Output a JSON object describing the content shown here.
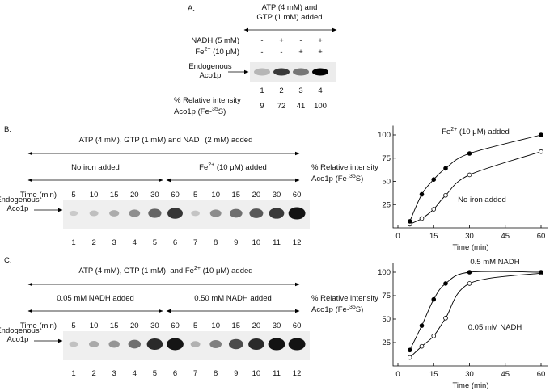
{
  "panels": {
    "a": {
      "label": "A.",
      "treatment": [
        "ATP (4 mM) and",
        "GTP (1 mM) added"
      ],
      "conditions": [
        {
          "name": [
            "NADH (5 mM)"
          ],
          "signs": [
            "-",
            "+",
            "-",
            "+"
          ]
        },
        {
          "name": [
            "Fe",
            "2+",
            " (10 μM)"
          ],
          "signs": [
            "-",
            "-",
            "+",
            "+"
          ]
        }
      ],
      "band_label": [
        "Endogenous",
        "Aco1p"
      ],
      "lanes": [
        1,
        2,
        3,
        4
      ],
      "intensity_label": [
        [
          "% Relative intensity"
        ],
        [
          "Aco1p (Fe-",
          "35",
          "S)"
        ]
      ],
      "intensity": [
        9,
        72,
        41,
        100
      ]
    },
    "b": {
      "label": "B.",
      "treatment": [
        "ATP (4 mM), GTP (1 mM) and NAD",
        "+",
        " (2 mM) added"
      ],
      "groups": [
        [
          "No iron added"
        ],
        [
          "Fe",
          "2+",
          " (10 μM) added"
        ]
      ],
      "time_label": "Time (min)",
      "times": [
        5,
        10,
        15,
        20,
        30,
        60,
        5,
        10,
        15,
        20,
        30,
        60
      ],
      "band_label": [
        "Endogenous",
        "Aco1p"
      ],
      "lanes": [
        1,
        2,
        3,
        4,
        5,
        6,
        7,
        8,
        9,
        10,
        11,
        12
      ],
      "intensity_label": [
        [
          "% Relative intensity"
        ],
        [
          "Aco1p (Fe-",
          "35",
          "S)"
        ]
      ]
    },
    "c": {
      "label": "C.",
      "treatment": [
        "ATP (4 mM), GTP (1 mM), and Fe",
        "2+",
        " (10 μM) added"
      ],
      "groups": [
        [
          "0.05 mM NADH added"
        ],
        [
          "0.50 mM NADH added"
        ]
      ],
      "time_label": "Time (min)",
      "times": [
        5,
        10,
        15,
        20,
        30,
        60,
        5,
        10,
        15,
        20,
        30,
        60
      ],
      "band_label": [
        "Endogenous",
        "Aco1p"
      ],
      "lanes": [
        1,
        2,
        3,
        4,
        5,
        6,
        7,
        8,
        9,
        10,
        11,
        12
      ],
      "intensity_label": [
        [
          "% Relative intensity"
        ],
        [
          "Aco1p (Fe-",
          "35",
          "S)"
        ]
      ]
    }
  },
  "chart_data": [
    {
      "type": "line",
      "x_label": "Time (min)",
      "x": [
        5,
        10,
        15,
        20,
        30,
        60
      ],
      "series": [
        {
          "name": [
            "No iron added"
          ],
          "color": "#000000",
          "marker": "open",
          "values": [
            4,
            10,
            20,
            35,
            57,
            82
          ]
        },
        {
          "name": [
            "Fe",
            "2+",
            " (10 μM) added"
          ],
          "color": "#000000",
          "marker": "filled",
          "values": [
            7,
            36,
            52,
            64,
            80,
            100
          ]
        }
      ],
      "xlim": [
        0,
        60
      ],
      "xticks": [
        0,
        15,
        30,
        45,
        60
      ],
      "ylim": [
        0,
        110
      ],
      "yticks": [
        25,
        50,
        75,
        100
      ]
    },
    {
      "type": "line",
      "x_label": "Time (min)",
      "x": [
        5,
        10,
        15,
        20,
        30,
        60
      ],
      "series": [
        {
          "name": [
            "0.05 mM NADH"
          ],
          "color": "#000000",
          "marker": "open",
          "values": [
            9,
            21,
            32,
            51,
            88,
            99
          ]
        },
        {
          "name": [
            "0.5 mM NADH"
          ],
          "color": "#000000",
          "marker": "filled",
          "values": [
            17,
            43,
            71,
            88,
            100,
            100
          ]
        }
      ],
      "xlim": [
        0,
        60
      ],
      "xticks": [
        0,
        15,
        30,
        45,
        60
      ],
      "ylim": [
        0,
        110
      ],
      "yticks": [
        25,
        50,
        75,
        100
      ]
    }
  ]
}
